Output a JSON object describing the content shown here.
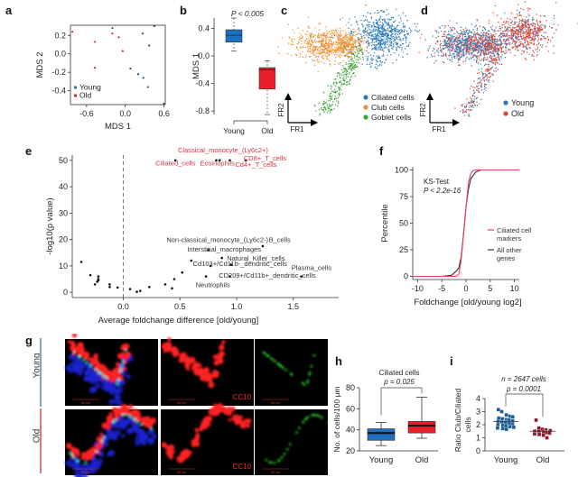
{
  "figure": {
    "panel_labels": [
      "a",
      "b",
      "c",
      "d",
      "e",
      "f",
      "g",
      "h",
      "i"
    ]
  },
  "chart_data": [
    {
      "id": "a",
      "type": "scatter",
      "title": "",
      "xlabel": "MDS 1",
      "ylabel": "MDS 2",
      "xlim": [
        -0.85,
        0.62
      ],
      "ylim": [
        -0.55,
        0.31
      ],
      "xticks": [
        "-0.6",
        "0.0",
        "0.6"
      ],
      "xtick_values": [
        -0.6,
        0.0,
        0.6
      ],
      "yticks": [
        "0.2",
        "0.0",
        "-0.2",
        "-0.4"
      ],
      "ytick_values": [
        0.2,
        0.0,
        -0.2,
        -0.4
      ],
      "legend": [
        {
          "name": "Young",
          "color": "#1f77b4"
        },
        {
          "name": "Old",
          "color": "#d62728"
        }
      ],
      "legend_position": "bottom-left",
      "series": [
        {
          "name": "Young",
          "color": "#1f4e79",
          "points": [
            [
              0.45,
              0.3
            ],
            [
              0.27,
              0.22
            ],
            [
              0.37,
              0.09
            ],
            [
              0.08,
              -0.16
            ],
            [
              0.2,
              -0.22
            ],
            [
              0.28,
              -0.26
            ],
            [
              0.35,
              -0.36
            ],
            [
              0.6,
              -0.54
            ]
          ]
        },
        {
          "name": "Old",
          "color": "#d62728",
          "points": [
            [
              -0.82,
              0.24
            ],
            [
              -0.47,
              0.13
            ],
            [
              -0.2,
              0.28
            ],
            [
              -0.2,
              0.22
            ],
            [
              -0.1,
              0.18
            ],
            [
              -0.04,
              0.03
            ],
            [
              -0.47,
              -0.15
            ]
          ]
        }
      ]
    },
    {
      "id": "b",
      "type": "box",
      "title": "P < 0.005",
      "xlabel": "",
      "ylabel": "MDS 1",
      "categories": [
        "Young",
        "Old"
      ],
      "ylim": [
        -0.85,
        0.55
      ],
      "yticks": [
        "0.4",
        "0.0",
        "-0.4",
        "-0.8"
      ],
      "ytick_values": [
        0.4,
        0.0,
        -0.4,
        -0.8
      ],
      "boxes": [
        {
          "name": "Young",
          "color": "#1f6fbf",
          "min": 0.07,
          "q1": 0.2,
          "median": 0.3,
          "q3": 0.38,
          "max": 0.55
        },
        {
          "name": "Old",
          "color": "#e8202a",
          "min": -0.85,
          "q1": -0.48,
          "median": -0.2,
          "q3": -0.17,
          "max": -0.07
        }
      ]
    },
    {
      "id": "c",
      "type": "scatter",
      "xlabel": "FR1",
      "ylabel": "FR2",
      "legend": [
        {
          "name": "Ciliated cells",
          "color": "#2a7ab9"
        },
        {
          "name": "Club cells",
          "color": "#f28e2b"
        },
        {
          "name": "Goblet cells",
          "color": "#3aa13a"
        }
      ],
      "legend_position": "bottom-right"
    },
    {
      "id": "d",
      "type": "scatter",
      "xlabel": "FR1",
      "ylabel": "FR2",
      "legend": [
        {
          "name": "Young",
          "color": "#2a7ab9"
        },
        {
          "name": "Old",
          "color": "#e8412e"
        }
      ],
      "legend_position": "bottom-right"
    },
    {
      "id": "e",
      "type": "scatter",
      "xlabel": "Average foldchange difference [old/young]",
      "ylabel": "-log10(p value)",
      "xlim": [
        -0.45,
        1.9
      ],
      "ylim": [
        -2,
        52
      ],
      "xticks": [
        "0.0",
        "0.5",
        "1.0",
        "1.5"
      ],
      "xtick_values": [
        0.0,
        0.5,
        1.0,
        1.5
      ],
      "yticks": [
        "0",
        "10",
        "20",
        "30",
        "40",
        "50"
      ],
      "ytick_values": [
        0,
        10,
        20,
        30,
        40,
        50
      ],
      "vline": 0.0,
      "points": [
        [
          -0.37,
          11.5
        ],
        [
          -0.29,
          6.5
        ],
        [
          -0.25,
          3
        ],
        [
          -0.23,
          4
        ],
        [
          -0.22,
          5
        ],
        [
          -0.22,
          6
        ],
        [
          -0.22,
          4.5
        ],
        [
          -0.12,
          3
        ],
        [
          -0.12,
          2
        ],
        [
          -0.05,
          1.8
        ],
        [
          0.06,
          1.2
        ],
        [
          0.12,
          0.2
        ],
        [
          0.15,
          0.5
        ],
        [
          0.23,
          2
        ],
        [
          0.37,
          3
        ],
        [
          0.43,
          1.5
        ],
        [
          0.45,
          5
        ],
        [
          0.52,
          7.5
        ],
        [
          0.6,
          12
        ],
        [
          0.75,
          16
        ],
        [
          0.73,
          6
        ],
        [
          0.77,
          10
        ],
        [
          0.87,
          13
        ],
        [
          0.95,
          10.5
        ],
        [
          0.94,
          6
        ],
        [
          1.23,
          17.5
        ],
        [
          1.57,
          6
        ],
        [
          0.46,
          50
        ],
        [
          0.82,
          50
        ],
        [
          0.85,
          50
        ],
        [
          0.94,
          50
        ],
        [
          1.08,
          50
        ]
      ],
      "labels_red": [
        {
          "text": "Classical_monocyte_(Ly6c2+)",
          "x": 0.88,
          "y": 53
        },
        {
          "text": "Ciliated_cells",
          "x": 0.46,
          "y": 48
        },
        {
          "text": "Eosinophils",
          "x": 0.83,
          "y": 48
        },
        {
          "text": "CD8+_T_cells",
          "x": 1.25,
          "y": 50
        },
        {
          "text": "Cd4+_T_cells",
          "x": 1.17,
          "y": 47.5
        }
      ],
      "labels_black": [
        {
          "text": "Non-classical_monocyte_(Ly6c2-)",
          "x": 0.83,
          "y": 19
        },
        {
          "text": "B_cells",
          "x": 1.38,
          "y": 19
        },
        {
          "text": "Interstitial_macrophages",
          "x": 0.89,
          "y": 15.5
        },
        {
          "text": "Natural_Killer_cells",
          "x": 1.17,
          "y": 12
        },
        {
          "text": "Cd103+/Cd11b-_dendritic_cells",
          "x": 1.03,
          "y": 10
        },
        {
          "text": "Plasma_cells",
          "x": 1.66,
          "y": 8.5
        },
        {
          "text": "CD209+/Cd11b+_dendritic_cells",
          "x": 1.27,
          "y": 5.5
        },
        {
          "text": "Neutrophils",
          "x": 0.79,
          "y": 2
        }
      ]
    },
    {
      "id": "f",
      "type": "line",
      "xlabel": "Foldchange [old/young log2]",
      "ylabel": "Percentile",
      "xlim": [
        -11,
        11
      ],
      "ylim": [
        -3,
        103
      ],
      "xticks": [
        "-10",
        "-5",
        "0",
        "5",
        "10"
      ],
      "xtick_values": [
        -10,
        -5,
        0,
        5,
        10
      ],
      "yticks": [
        "0",
        "25",
        "50",
        "75",
        "100"
      ],
      "ytick_values": [
        0,
        25,
        50,
        75,
        100
      ],
      "annotation": [
        "KS-Test",
        "P < 2.2e-16"
      ],
      "legend_position": "right",
      "series": [
        {
          "name": "Ciliated cell markers",
          "color": "#e8415a",
          "x": [
            -11,
            -2,
            -1.5,
            -1,
            -0.5,
            0,
            0.5,
            1,
            1.5,
            2,
            11
          ],
          "y": [
            0,
            0,
            2,
            15,
            40,
            65,
            88,
            97,
            99.5,
            100,
            100
          ]
        },
        {
          "name": "All other genes",
          "color": "#333333",
          "x": [
            -11,
            -5,
            -3,
            -2,
            -1.5,
            -1,
            -0.5,
            0,
            0.5,
            1,
            2,
            3,
            11
          ],
          "y": [
            0,
            0,
            1,
            5,
            8,
            18,
            40,
            65,
            82,
            92,
            98,
            100,
            100
          ]
        }
      ]
    },
    {
      "id": "h",
      "type": "box",
      "title": "Ciliated cells",
      "pvalue": "p = 0.025",
      "xlabel": "",
      "ylabel": "No. of cells/100 μm",
      "categories": [
        "Young",
        "Old"
      ],
      "ylim": [
        20,
        80
      ],
      "yticks": [
        "20",
        "40",
        "60",
        "80"
      ],
      "ytick_values": [
        20,
        40,
        60,
        80
      ],
      "boxes": [
        {
          "name": "Young",
          "color": "#1f6fbf",
          "min": 25,
          "q1": 30,
          "median": 37,
          "q3": 41,
          "max": 47
        },
        {
          "name": "Old",
          "color": "#e8202a",
          "min": 32,
          "q1": 37,
          "median": 44,
          "q3": 48,
          "max": 71
        }
      ]
    },
    {
      "id": "i",
      "type": "scatter",
      "title": "n = 2647 cells",
      "pvalue": "p = 0.0001",
      "xlabel": "",
      "ylabel": "Ratio Club/Ciliated cells",
      "categories": [
        "Young",
        "Old"
      ],
      "ylim": [
        0,
        4
      ],
      "yticks": [
        "0",
        "1",
        "2",
        "3",
        "4"
      ],
      "ytick_values": [
        0,
        1,
        2,
        3,
        4
      ],
      "series": [
        {
          "name": "Young",
          "color": "#1f5f99",
          "mean": 2.25,
          "values": [
            3.15,
            3.0,
            2.75,
            2.65,
            2.6,
            2.5,
            2.45,
            2.4,
            2.35,
            2.3,
            2.25,
            2.2,
            2.15,
            2.1,
            2.05,
            2.0,
            1.95,
            1.9,
            1.85,
            1.8,
            1.75,
            1.7,
            1.65
          ]
        },
        {
          "name": "Old",
          "color": "#8b1a2b",
          "mean": 1.5,
          "values": [
            2.35,
            1.75,
            1.65,
            1.6,
            1.55,
            1.5,
            1.5,
            1.45,
            1.4,
            1.35,
            1.3,
            1.25,
            1.2,
            1.0
          ]
        }
      ]
    }
  ],
  "micrographs": {
    "row_labels": [
      "Young",
      "Old"
    ],
    "row_colors": [
      "#7ea6c8",
      "#d07a80"
    ],
    "channels": [
      "merge",
      "CC10",
      "Foxj1"
    ],
    "channel_colors": {
      "CC10": "#ff2a2a",
      "Foxj1": "#2bd42b"
    },
    "scale_bar": "50 μm"
  }
}
